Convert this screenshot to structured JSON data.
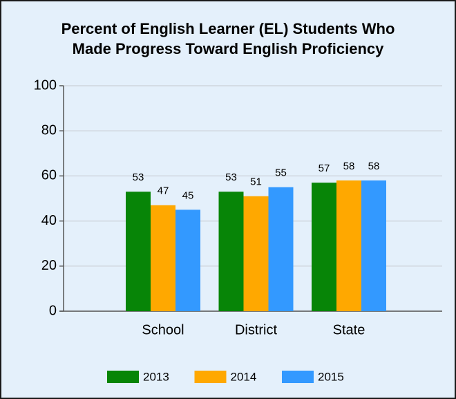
{
  "chart_data": {
    "type": "bar",
    "title": [
      "Percent of English Learner (EL) Students Who",
      "Made Progress Toward English Proficiency"
    ],
    "categories": [
      "School",
      "District",
      "State"
    ],
    "series": [
      {
        "name": "2013",
        "color": "#078507",
        "values": [
          53,
          53,
          57
        ]
      },
      {
        "name": "2014",
        "color": "#ffa800",
        "values": [
          47,
          51,
          58
        ]
      },
      {
        "name": "2015",
        "color": "#3399ff",
        "values": [
          45,
          55,
          58
        ]
      }
    ],
    "ylim": [
      0,
      100
    ],
    "yticks": [
      0,
      20,
      40,
      60,
      80,
      100
    ],
    "grid": true,
    "legend": "bottom"
  }
}
